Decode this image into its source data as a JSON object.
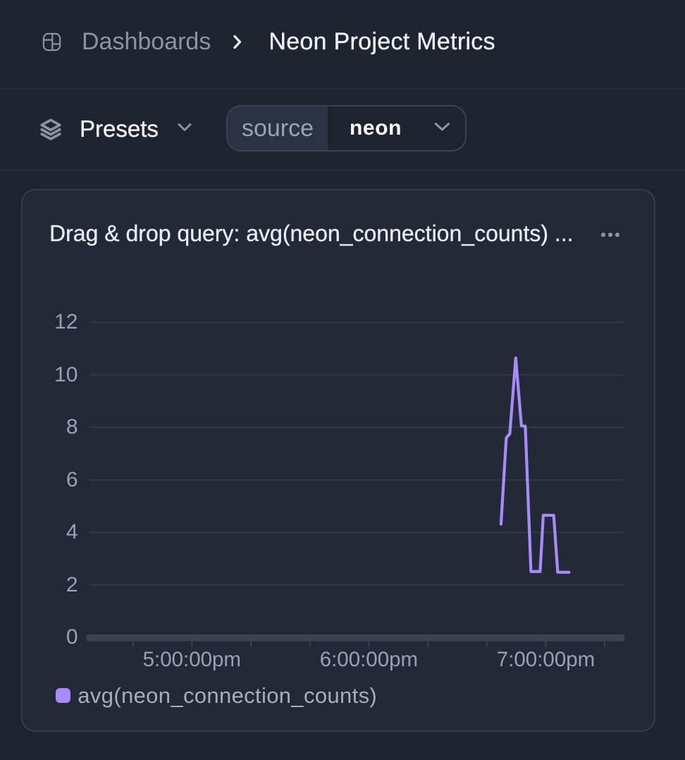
{
  "colors": {
    "background": "#1f2431",
    "card_background": "#232937",
    "border": "#353c4e",
    "divider": "#2c3242",
    "muted_text": "#8b93a7",
    "bright_text": "#f0f2f6",
    "axis_text": "#99a1b3",
    "gridline": "#343b4a",
    "axis_bar": "#3b4252",
    "series_purple": "#a78bfa"
  },
  "header": {
    "breadcrumb_root": "Dashboards",
    "breadcrumb_current": "Neon Project Metrics"
  },
  "toolbar": {
    "presets_label": "Presets",
    "filter_key": "source",
    "filter_value": "neon"
  },
  "card": {
    "title": "Drag & drop query: avg(neon_connection_counts) ..."
  },
  "chart_data": {
    "type": "line",
    "series": [
      {
        "name": "avg(neon_connection_counts)",
        "color": "#a78bfa",
        "points": [
          [
            18.7468,
            4.31
          ],
          [
            18.7767,
            7.6
          ],
          [
            18.7966,
            7.76
          ],
          [
            18.83,
            10.64
          ],
          [
            18.8623,
            8.06
          ],
          [
            18.8842,
            8.04
          ],
          [
            18.9161,
            2.51
          ],
          [
            18.9678,
            2.51
          ],
          [
            18.9857,
            4.65
          ],
          [
            19.0447,
            4.65
          ],
          [
            19.0674,
            2.48
          ],
          [
            19.1311,
            2.48
          ]
        ]
      }
    ],
    "x_axis": {
      "unit": "time_of_day_hours",
      "window_start": 16.401,
      "window_end": 19.444,
      "minor_tick_interval_minutes": 20,
      "labels": [
        {
          "value": 17,
          "text": "5:00:00pm"
        },
        {
          "value": 18,
          "text": "6:00:00pm"
        },
        {
          "value": 19,
          "text": "7:00:00pm"
        }
      ]
    },
    "y_axis": {
      "min": 0,
      "max": 12,
      "tick_step": 2,
      "tick_labels": [
        "0",
        "2",
        "4",
        "6",
        "8",
        "10",
        "12"
      ]
    },
    "legend": [
      {
        "name": "avg(neon_connection_counts)",
        "color": "#a78bfa"
      }
    ],
    "grid": true,
    "legend_position": "bottom-left"
  }
}
